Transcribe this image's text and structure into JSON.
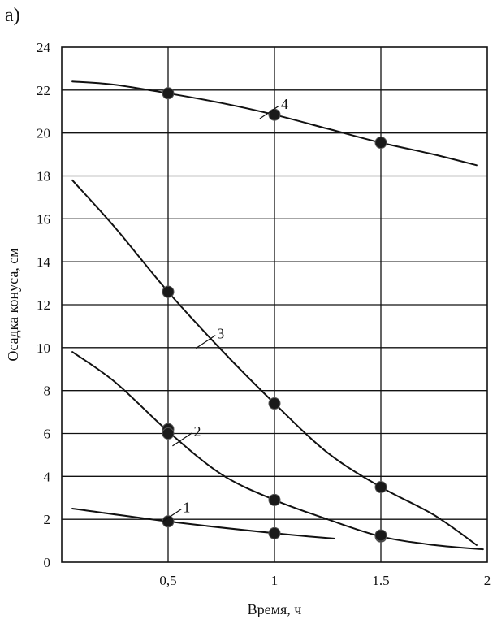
{
  "panel_label": "а)",
  "chart_data": {
    "type": "line",
    "xlabel": "Время, ч",
    "ylabel": "Осадка конуса, см",
    "xlim": [
      0,
      2
    ],
    "ylim": [
      0,
      24
    ],
    "x_ticks": [
      0.5,
      1,
      1.5,
      2
    ],
    "x_tick_labels": [
      "0,5",
      "1",
      "1.5",
      "2"
    ],
    "y_ticks": [
      0,
      2,
      4,
      6,
      8,
      10,
      12,
      14,
      16,
      18,
      20,
      22,
      24
    ],
    "y_tick_labels": [
      "0",
      "2",
      "4",
      "6",
      "8",
      "10",
      "12",
      "14",
      "16",
      "18",
      "20",
      "22",
      "24"
    ],
    "grid": true,
    "series": [
      {
        "name": "1",
        "curve": [
          [
            0.05,
            2.5
          ],
          [
            0.5,
            1.9
          ],
          [
            1.0,
            1.35
          ],
          [
            1.28,
            1.1
          ]
        ],
        "points": [
          [
            0.5,
            1.9
          ],
          [
            1.0,
            1.35
          ],
          [
            1.5,
            1.2
          ]
        ],
        "label_at": [
          0.57,
          2.4
        ]
      },
      {
        "name": "2",
        "curve": [
          [
            0.05,
            9.8
          ],
          [
            0.25,
            8.4
          ],
          [
            0.5,
            6.1
          ],
          [
            0.75,
            4.1
          ],
          [
            1.0,
            2.9
          ],
          [
            1.25,
            2.0
          ],
          [
            1.5,
            1.2
          ],
          [
            1.75,
            0.8
          ],
          [
            1.98,
            0.6
          ]
        ],
        "points": [
          [
            0.5,
            6.2
          ],
          [
            0.5,
            6.0
          ],
          [
            1.0,
            2.9
          ],
          [
            1.5,
            1.25
          ]
        ],
        "label_at": [
          0.62,
          5.95
        ]
      },
      {
        "name": "3",
        "curve": [
          [
            0.05,
            17.8
          ],
          [
            0.25,
            15.6
          ],
          [
            0.5,
            12.6
          ],
          [
            0.75,
            9.9
          ],
          [
            1.0,
            7.4
          ],
          [
            1.25,
            5.1
          ],
          [
            1.5,
            3.5
          ],
          [
            1.75,
            2.2
          ],
          [
            1.95,
            0.8
          ]
        ],
        "points": [
          [
            0.5,
            12.6
          ],
          [
            1.0,
            7.4
          ],
          [
            1.5,
            3.5
          ]
        ],
        "label_at": [
          0.73,
          10.5
        ]
      },
      {
        "name": "4",
        "curve": [
          [
            0.05,
            22.4
          ],
          [
            0.25,
            22.25
          ],
          [
            0.5,
            21.85
          ],
          [
            0.75,
            21.4
          ],
          [
            1.0,
            20.85
          ],
          [
            1.25,
            20.2
          ],
          [
            1.5,
            19.55
          ],
          [
            1.75,
            19.0
          ],
          [
            1.95,
            18.5
          ]
        ],
        "points": [
          [
            0.5,
            21.85
          ],
          [
            1.0,
            20.85
          ],
          [
            1.5,
            19.55
          ]
        ],
        "label_at": [
          1.03,
          21.2
        ]
      }
    ]
  }
}
